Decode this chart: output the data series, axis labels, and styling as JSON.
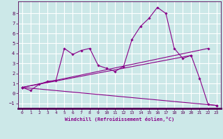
{
  "title": "",
  "xlabel": "Windchill (Refroidissement éolien,°C)",
  "ylabel": "",
  "xlim": [
    -0.5,
    23.5
  ],
  "ylim": [
    -1.5,
    9.2
  ],
  "yticks": [
    -1,
    0,
    1,
    2,
    3,
    4,
    5,
    6,
    7,
    8
  ],
  "xticks": [
    0,
    1,
    2,
    3,
    4,
    5,
    6,
    7,
    8,
    9,
    10,
    11,
    12,
    13,
    14,
    15,
    16,
    17,
    18,
    19,
    20,
    21,
    22,
    23
  ],
  "background_color": "#cce8e8",
  "grid_color": "#ffffff",
  "line_color": "#880088",
  "lines": [
    {
      "x": [
        0,
        1,
        2,
        3,
        4,
        5,
        6,
        7,
        8,
        9,
        10,
        11,
        12,
        13,
        14,
        15,
        16,
        17,
        18,
        19,
        20,
        21,
        22,
        23
      ],
      "y": [
        0.6,
        0.3,
        0.9,
        1.2,
        1.3,
        4.5,
        3.9,
        4.3,
        4.5,
        2.8,
        2.5,
        2.2,
        2.7,
        5.4,
        6.7,
        7.5,
        8.6,
        8.0,
        4.5,
        3.5,
        3.8,
        1.5,
        -1.1,
        -1.2
      ],
      "style": "solid",
      "marker": true
    },
    {
      "x": [
        0,
        23
      ],
      "y": [
        0.6,
        -1.2
      ],
      "style": "solid",
      "marker": true
    },
    {
      "x": [
        0,
        20
      ],
      "y": [
        0.6,
        3.8
      ],
      "style": "solid",
      "marker": true
    },
    {
      "x": [
        0,
        22
      ],
      "y": [
        0.6,
        4.5
      ],
      "style": "solid",
      "marker": true
    }
  ]
}
